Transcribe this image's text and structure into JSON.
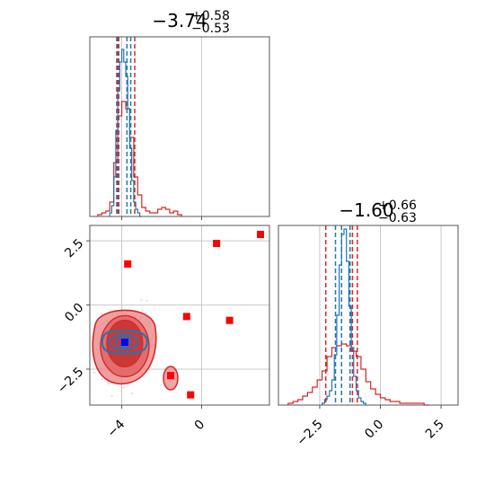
{
  "chart_data": {
    "type": "corner",
    "parameters": [
      {
        "title": {
          "base": "−3.74",
          "plus": "+0.58",
          "minus": "−0.53"
        },
        "xlim": [
          -5.6,
          3.4
        ],
        "xticks": [
          -4,
          0
        ],
        "xtick_labels": [
          "−4",
          "0"
        ],
        "quantiles": {
          "blue": [
            -4.2,
            -3.74,
            -3.55
          ],
          "red": [
            -4.25,
            -4.15,
            -3.35
          ]
        }
      },
      {
        "title": {
          "base": "−1.60",
          "plus": "+0.66",
          "minus": "−0.63"
        },
        "xlim": [
          -4.2,
          3.2
        ],
        "xticks": [
          -2.5,
          0.0,
          2.5
        ],
        "xtick_labels": [
          "−2.5",
          "0.0",
          "2.5"
        ],
        "quantiles": {
          "blue": [
            -1.85,
            -1.6,
            -1.25
          ],
          "red": [
            -2.25,
            -1.15,
            -0.95
          ]
        }
      }
    ],
    "scatter_panel": {
      "xlim": [
        -5.6,
        3.4
      ],
      "ylim": [
        -3.9,
        3.1
      ],
      "yticks": [
        2.5,
        0.0,
        -2.5
      ],
      "ytick_labels": [
        "2.5",
        "0.0",
        "−2.5"
      ],
      "red_square_points": [
        [
          -3.7,
          1.6
        ],
        [
          0.75,
          2.4
        ],
        [
          2.95,
          2.75
        ],
        [
          -0.75,
          -0.45
        ],
        [
          1.4,
          -0.6
        ],
        [
          -1.55,
          -2.75
        ],
        [
          -0.55,
          -3.5
        ]
      ],
      "blue_marker": [
        -3.85,
        -1.45
      ],
      "red_density_center": [
        -3.85,
        -1.5
      ],
      "blue_density_center": [
        -3.9,
        -1.45
      ]
    },
    "hist_param1": {
      "blue": {
        "edges": [
          -4.6,
          -4.5,
          -4.4,
          -4.3,
          -4.2,
          -4.1,
          -4.0,
          -3.9,
          -3.8,
          -3.7,
          -3.6,
          -3.5,
          -3.4,
          -3.3,
          -3.2,
          -3.1,
          -3.0
        ],
        "heights": [
          0.02,
          0.06,
          0.22,
          0.48,
          0.7,
          0.86,
          0.93,
          0.86,
          0.78,
          0.6,
          0.38,
          0.2,
          0.08,
          0.04,
          0.02,
          0.0
        ]
      },
      "red": {
        "edges": [
          -5.2,
          -5.0,
          -4.8,
          -4.6,
          -4.4,
          -4.2,
          -4.0,
          -3.8,
          -3.6,
          -3.4,
          -3.2,
          -3.0,
          -2.8,
          -2.6,
          -2.4,
          -2.2,
          -2.0,
          -1.8,
          -1.6,
          -1.4,
          -1.2,
          -1.0
        ],
        "heights": [
          0.01,
          0.02,
          0.03,
          0.08,
          0.3,
          0.56,
          0.64,
          0.6,
          0.44,
          0.22,
          0.12,
          0.05,
          0.03,
          0.02,
          0.02,
          0.04,
          0.05,
          0.04,
          0.02,
          0.03,
          0.01
        ]
      }
    },
    "hist_param2": {
      "blue": {
        "edges": [
          -2.4,
          -2.3,
          -2.2,
          -2.1,
          -2.0,
          -1.9,
          -1.8,
          -1.7,
          -1.6,
          -1.5,
          -1.4,
          -1.3,
          -1.2,
          -1.1,
          -1.0,
          -0.9,
          -0.8,
          -0.7,
          -0.6
        ],
        "heights": [
          0.01,
          0.03,
          0.05,
          0.08,
          0.14,
          0.28,
          0.5,
          0.78,
          0.95,
          0.98,
          0.8,
          0.55,
          0.32,
          0.16,
          0.08,
          0.04,
          0.02,
          0.01
        ]
      },
      "red": {
        "edges": [
          -3.8,
          -3.6,
          -3.4,
          -3.2,
          -3.0,
          -2.8,
          -2.6,
          -2.4,
          -2.2,
          -2.0,
          -1.8,
          -1.6,
          -1.4,
          -1.2,
          -1.0,
          -0.8,
          -0.6,
          -0.4,
          -0.2,
          0.0,
          0.2,
          0.4,
          0.6,
          0.8,
          1.0,
          1.2,
          1.4,
          1.6,
          1.8,
          2.0
        ],
        "heights": [
          0.01,
          0.02,
          0.03,
          0.05,
          0.07,
          0.1,
          0.14,
          0.19,
          0.27,
          0.32,
          0.33,
          0.34,
          0.33,
          0.3,
          0.27,
          0.2,
          0.13,
          0.09,
          0.06,
          0.04,
          0.03,
          0.02,
          0.02,
          0.01,
          0.01,
          0.01,
          0.01,
          0.01,
          0.0
        ]
      }
    },
    "grid": true,
    "colors": {
      "red": "#d62728",
      "blue": "#1f77b4",
      "red_fill": "#e88080",
      "red_dark_fill": "#c83232",
      "marker_red": "#ff0000",
      "marker_blue": "#0000ff",
      "grid": "#c8c8c8",
      "axes": "#555555"
    }
  }
}
